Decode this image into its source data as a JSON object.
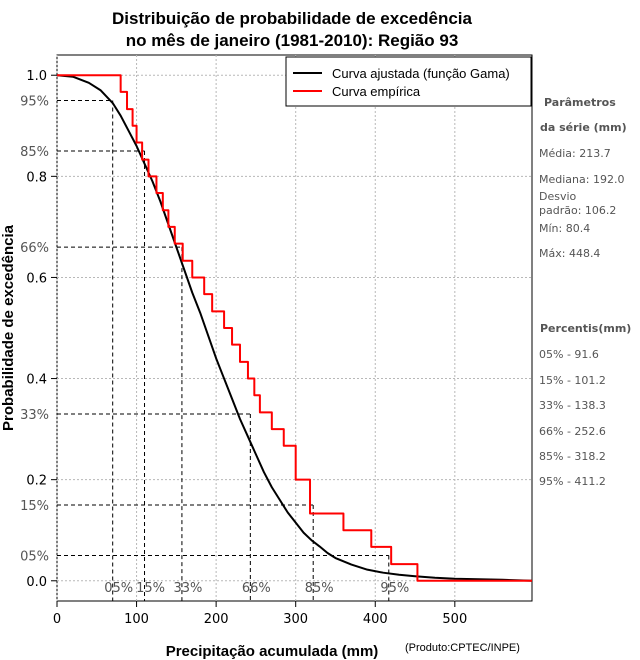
{
  "chart_data": {
    "type": "line",
    "title": [
      "Distribuição de probabilidade de excedência",
      "no mês de janeiro (1981-2010): Região 93"
    ],
    "xlabel": "Precipitação acumulada (mm)",
    "ylabel": "Probabilidade de excedência",
    "credit": "(Produto:CPTEC/INPE)",
    "xlim": [
      0,
      597
    ],
    "ylim": [
      -0.04,
      1.04
    ],
    "x_ticks": [
      0,
      100,
      200,
      300,
      400,
      500
    ],
    "y_ticks": [
      0.0,
      0.2,
      0.4,
      0.6,
      0.8,
      1.0
    ],
    "y_tick_labels": [
      "0.0",
      "0.2",
      "0.4",
      "0.6",
      "0.8",
      "1.0"
    ],
    "grid": true,
    "legend_position": "top-right",
    "series": [
      {
        "name": "Curva ajustada (função Gama)",
        "color": "#000000",
        "style": "line",
        "x": [
          0,
          20,
          40,
          55,
          70,
          80,
          90,
          100,
          110,
          120,
          130,
          140,
          150,
          160,
          170,
          180,
          190,
          200,
          210,
          220,
          230,
          240,
          250,
          260,
          270,
          280,
          290,
          300,
          310,
          320,
          330,
          340,
          350,
          370,
          390,
          410,
          430,
          450,
          475,
          500,
          530,
          560,
          597
        ],
        "y": [
          1.0,
          0.997,
          0.985,
          0.97,
          0.945,
          0.92,
          0.89,
          0.86,
          0.825,
          0.79,
          0.75,
          0.705,
          0.66,
          0.615,
          0.57,
          0.53,
          0.485,
          0.44,
          0.4,
          0.36,
          0.32,
          0.285,
          0.25,
          0.215,
          0.185,
          0.16,
          0.135,
          0.115,
          0.095,
          0.08,
          0.068,
          0.055,
          0.045,
          0.032,
          0.022,
          0.016,
          0.012,
          0.009,
          0.006,
          0.004,
          0.003,
          0.002,
          0.0
        ]
      },
      {
        "name": "Curva empírica",
        "color": "#ff0000",
        "style": "step",
        "x": [
          0,
          78,
          80,
          88,
          95,
          100,
          107,
          115,
          125,
          133,
          140,
          148,
          158,
          170,
          185,
          195,
          210,
          220,
          230,
          240,
          248,
          255,
          270,
          285,
          300,
          318,
          360,
          395,
          420,
          432,
          453,
          597
        ],
        "y": [
          1.0,
          1.0,
          0.967,
          0.933,
          0.9,
          0.867,
          0.833,
          0.8,
          0.767,
          0.733,
          0.7,
          0.667,
          0.633,
          0.6,
          0.567,
          0.533,
          0.5,
          0.467,
          0.433,
          0.4,
          0.367,
          0.333,
          0.3,
          0.267,
          0.2,
          0.133,
          0.1,
          0.067,
          0.033,
          0.033,
          0.0,
          0.0
        ]
      }
    ],
    "percentiles": [
      {
        "label_y": "95%",
        "label_x": "05%",
        "prob": 0.95,
        "value": 70
      },
      {
        "label_y": "85%",
        "label_x": "15%",
        "prob": 0.85,
        "value": 110
      },
      {
        "label_y": "66%",
        "label_x": "33%",
        "prob": 0.66,
        "value": 157
      },
      {
        "label_y": "33%",
        "label_x": "66%",
        "prob": 0.33,
        "value": 243
      },
      {
        "label_y": "15%",
        "label_x": "85%",
        "prob": 0.15,
        "value": 322
      },
      {
        "label_y": "05%",
        "label_x": "95%",
        "prob": 0.05,
        "value": 417
      }
    ]
  },
  "side_panel": {
    "params_title_1": "Parâmetros",
    "params_title_2": "da série (mm)",
    "media": "Média: 213.7",
    "mediana": "Mediana: 192.0",
    "desvio_1": "Desvio",
    "desvio_2": "padrão: 106.2",
    "min": "Mín: 80.4",
    "max": "Máx: 448.4",
    "percentis_title": "Percentis(mm)",
    "percentis": [
      "05% - 91.6",
      "15% - 101.2",
      "33% - 138.3",
      "66% - 252.6",
      "85% - 318.2",
      "95% - 411.2"
    ]
  }
}
